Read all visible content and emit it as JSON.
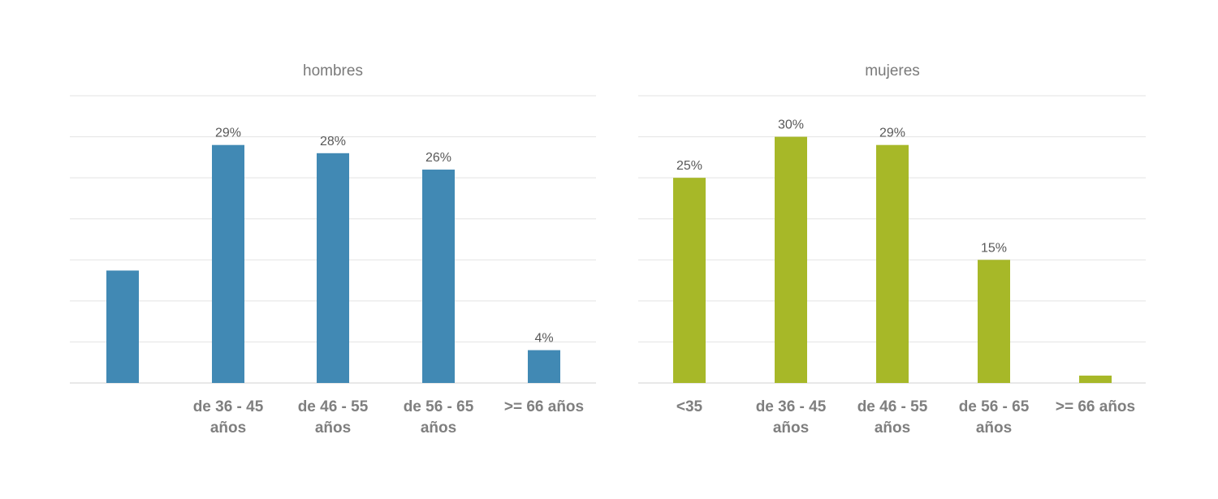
{
  "chart_data": [
    {
      "type": "bar",
      "title": "hombres",
      "categories": [
        [
          "",
          ""
        ],
        [
          "de 36 - 45",
          "años"
        ],
        [
          "de 46 - 55",
          "años"
        ],
        [
          "de 56 - 65",
          "años"
        ],
        [
          ">= 66 años",
          ""
        ]
      ],
      "values": [
        13.7,
        29,
        28,
        26,
        4
      ],
      "labels": [
        "",
        "29%",
        "28%",
        "26%",
        "4%"
      ],
      "ylim": [
        0,
        35
      ],
      "grid": true,
      "color": "#4189b4"
    },
    {
      "type": "bar",
      "title": "mujeres",
      "categories": [
        [
          "<35",
          ""
        ],
        [
          "de 36 - 45",
          "años"
        ],
        [
          "de 46 - 55",
          "años"
        ],
        [
          "de 56 - 65",
          "años"
        ],
        [
          ">= 66 años",
          ""
        ]
      ],
      "values": [
        25,
        30,
        29,
        15,
        0.9
      ],
      "labels": [
        "25%",
        "30%",
        "29%",
        "15%",
        ""
      ],
      "ylim": [
        0,
        35
      ],
      "grid": true,
      "color": "#a7b828"
    }
  ]
}
